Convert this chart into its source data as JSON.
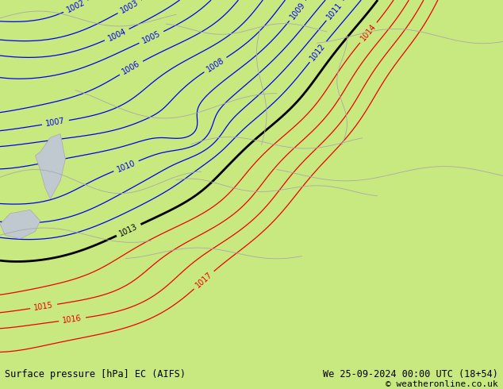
{
  "title_left": "Surface pressure [hPa] EC (AIFS)",
  "title_right": "We 25-09-2024 00:00 UTC (18+54)",
  "copyright": "© weatheronline.co.uk",
  "bg_color": "#c8e880",
  "label_fontsize": 7,
  "footer_fontsize": 8.5,
  "blue_levels": [
    1002,
    1003,
    1004,
    1005,
    1006,
    1007,
    1008,
    1009,
    1010,
    1011,
    1012
  ],
  "black_levels": [
    1013
  ],
  "red_levels": [
    1014,
    1015,
    1016,
    1017
  ],
  "blue_color": "#0000ee",
  "black_color": "#000000",
  "red_color": "#ee0000",
  "border_color": "#aaaaaa"
}
